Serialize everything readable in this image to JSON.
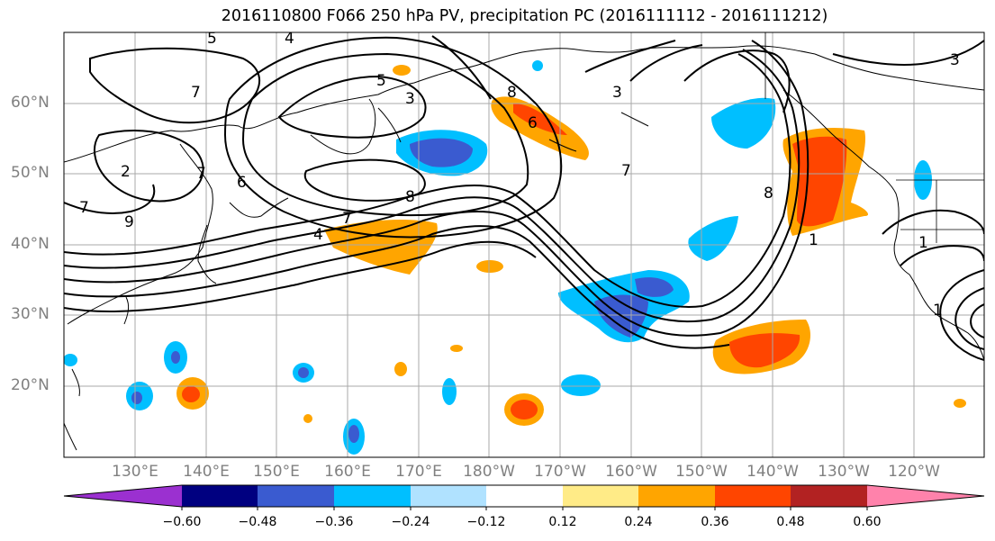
{
  "title": "2016110800 F066 250 hPa PV, precipitation PC (2016111112 - 2016111212)",
  "lat_labels": [
    "60°N",
    "50°N",
    "40°N",
    "30°N",
    "20°N"
  ],
  "lon_labels": [
    "130°E",
    "140°E",
    "150°E",
    "160°E",
    "170°E",
    "180°W",
    "170°W",
    "160°W",
    "150°W",
    "140°W",
    "130°W",
    "120°W"
  ],
  "colorbar": {
    "tick_labels": [
      "−0.60",
      "−0.48",
      "−0.36",
      "−0.24",
      "−0.12",
      "0.12",
      "0.24",
      "0.36",
      "0.48",
      "0.60"
    ],
    "colors": [
      "#9b30d0",
      "#000080",
      "#3a5bd0",
      "#00bfff",
      "#b0e2ff",
      "#ffffff",
      "#ffeb87",
      "#ffa500",
      "#ff4500",
      "#b22222",
      "#ff82ab"
    ]
  },
  "contour_labels": [
    "5",
    "4",
    "3",
    "3",
    "7",
    "6",
    "6",
    "8",
    "7",
    "4",
    "2",
    "7",
    "8",
    "9",
    "7",
    "5",
    "8",
    "7",
    "1",
    "1",
    "1",
    "3"
  ]
}
